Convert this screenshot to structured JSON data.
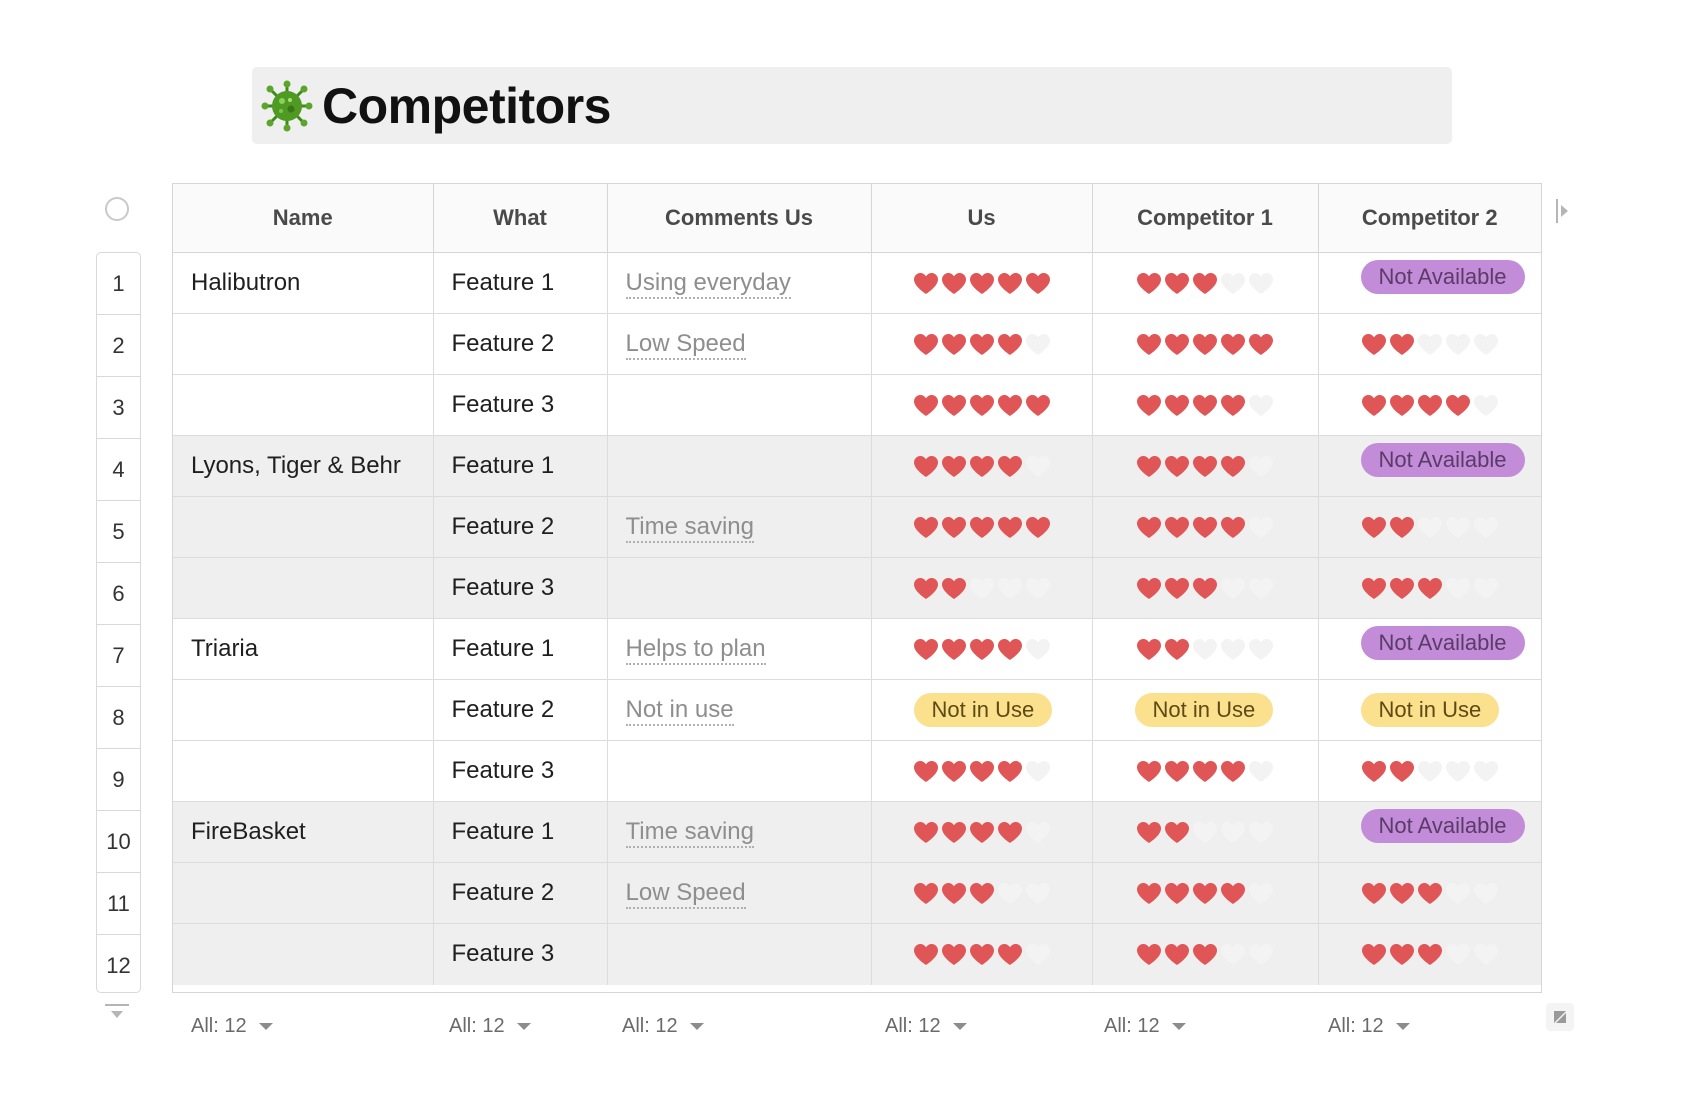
{
  "page": {
    "title": "Competitors",
    "title_icon": "virus-icon"
  },
  "columns": [
    "Name",
    "What",
    "Comments Us",
    "Us",
    "Competitor 1",
    "Competitor 2"
  ],
  "rows": [
    {
      "num": "1",
      "name": "Halibutron",
      "what": "Feature 1",
      "comment": "Using everyday",
      "us": {
        "hearts": 5
      },
      "c1": {
        "hearts": 3
      },
      "c2": {
        "badge": "Not Available"
      },
      "shaded": false
    },
    {
      "num": "2",
      "name": "",
      "what": "Feature 2",
      "comment": "Low Speed",
      "us": {
        "hearts": 4
      },
      "c1": {
        "hearts": 5
      },
      "c2": {
        "hearts": 2
      },
      "shaded": false
    },
    {
      "num": "3",
      "name": "",
      "what": "Feature 3",
      "comment": "",
      "us": {
        "hearts": 5
      },
      "c1": {
        "hearts": 4
      },
      "c2": {
        "hearts": 4
      },
      "shaded": false
    },
    {
      "num": "4",
      "name": "Lyons, Tiger & Behr",
      "what": "Feature 1",
      "comment": "",
      "us": {
        "hearts": 4
      },
      "c1": {
        "hearts": 4
      },
      "c2": {
        "badge": "Not Available"
      },
      "shaded": true
    },
    {
      "num": "5",
      "name": "",
      "what": "Feature 2",
      "comment": "Time saving",
      "us": {
        "hearts": 5
      },
      "c1": {
        "hearts": 4
      },
      "c2": {
        "hearts": 2
      },
      "shaded": true
    },
    {
      "num": "6",
      "name": "",
      "what": "Feature 3",
      "comment": "",
      "us": {
        "hearts": 2
      },
      "c1": {
        "hearts": 3
      },
      "c2": {
        "hearts": 3
      },
      "shaded": true
    },
    {
      "num": "7",
      "name": "Triaria",
      "what": "Feature 1",
      "comment": "Helps to plan",
      "us": {
        "hearts": 4
      },
      "c1": {
        "hearts": 2
      },
      "c2": {
        "badge": "Not Available"
      },
      "shaded": false
    },
    {
      "num": "8",
      "name": "",
      "what": "Feature 2",
      "comment": "Not in use",
      "us": {
        "badge": "Not in Use"
      },
      "c1": {
        "badge": "Not in Use"
      },
      "c2": {
        "badge": "Not in Use"
      },
      "shaded": false
    },
    {
      "num": "9",
      "name": "",
      "what": "Feature 3",
      "comment": "",
      "us": {
        "hearts": 4
      },
      "c1": {
        "hearts": 4
      },
      "c2": {
        "hearts": 2
      },
      "shaded": false
    },
    {
      "num": "10",
      "name": "FireBasket",
      "what": "Feature 1",
      "comment": "Time saving",
      "us": {
        "hearts": 4
      },
      "c1": {
        "hearts": 2
      },
      "c2": {
        "badge": "Not Available"
      },
      "shaded": true
    },
    {
      "num": "11",
      "name": "",
      "what": "Feature 2",
      "comment": "Low Speed",
      "us": {
        "hearts": 3
      },
      "c1": {
        "hearts": 4
      },
      "c2": {
        "hearts": 3
      },
      "shaded": true
    },
    {
      "num": "12",
      "name": "",
      "what": "Feature 3",
      "comment": "",
      "us": {
        "hearts": 4
      },
      "c1": {
        "hearts": 3
      },
      "c2": {
        "hearts": 3
      },
      "shaded": true
    }
  ],
  "rating_max": 5,
  "footer": [
    "All: 12",
    "All: 12",
    "All: 12",
    "All: 12",
    "All: 12",
    "All: 12"
  ],
  "colors": {
    "heart_filled": "#e05555",
    "heart_empty": "#f3f3f3",
    "badge_not_available": "#c38cd8",
    "badge_not_in_use": "#fbe08d",
    "row_shade": "#efefef"
  }
}
